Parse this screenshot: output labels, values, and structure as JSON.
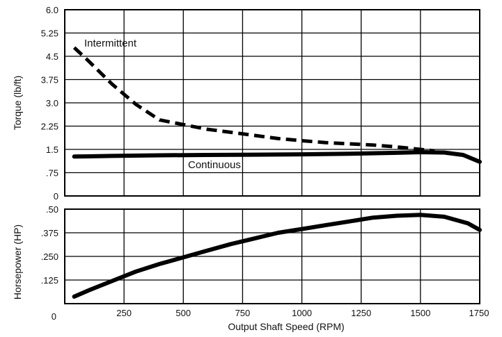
{
  "chart_data": [
    {
      "type": "line",
      "ylabel": "Torque (lb/ft)",
      "ylim": [
        0,
        6.0
      ],
      "grid": true,
      "x_ticks": [
        0,
        250,
        500,
        750,
        1000,
        1250,
        1500,
        1750
      ],
      "y_ticks": [
        0,
        0.75,
        1.5,
        2.25,
        3.0,
        3.75,
        4.5,
        5.25,
        6.0
      ],
      "y_tick_labels": [
        "0",
        ".75",
        "1.5",
        "2.25",
        "3.0",
        "3.75",
        "4.5",
        "5.25",
        "6.0"
      ],
      "annotations": [
        "Intermittent",
        "Continuous"
      ],
      "series": [
        {
          "name": "Intermittent",
          "style": "dashed",
          "x": [
            40,
            100,
            200,
            300,
            400,
            500,
            600,
            700,
            800,
            900,
            1000,
            1100,
            1200,
            1300,
            1400,
            1500,
            1560
          ],
          "y": [
            4.78,
            4.35,
            3.6,
            2.95,
            2.45,
            2.3,
            2.15,
            2.05,
            1.95,
            1.85,
            1.78,
            1.72,
            1.68,
            1.64,
            1.58,
            1.5,
            1.45
          ]
        },
        {
          "name": "Continuous",
          "style": "solid",
          "x": [
            40,
            200,
            400,
            600,
            800,
            1000,
            1200,
            1400,
            1500,
            1600,
            1680,
            1750
          ],
          "y": [
            1.27,
            1.29,
            1.31,
            1.32,
            1.33,
            1.34,
            1.36,
            1.39,
            1.41,
            1.4,
            1.32,
            1.1
          ]
        }
      ]
    },
    {
      "type": "line",
      "xlabel": "Output Shaft Speed (RPM)",
      "ylabel": "Horsepower (HP)",
      "xlim": [
        0,
        1750
      ],
      "ylim": [
        0,
        0.5
      ],
      "grid": true,
      "x_ticks": [
        0,
        250,
        500,
        750,
        1000,
        1250,
        1500,
        1750
      ],
      "x_tick_labels": [
        "0",
        "250",
        "500",
        "750",
        "1000",
        "1250",
        "1500",
        "1750"
      ],
      "y_ticks": [
        0.125,
        0.25,
        0.375,
        0.5
      ],
      "y_tick_labels": [
        ".125",
        ".250",
        ".375",
        ".50"
      ],
      "series": [
        {
          "style": "solid",
          "x": [
            40,
            100,
            200,
            300,
            400,
            500,
            600,
            700,
            800,
            900,
            1000,
            1100,
            1200,
            1300,
            1400,
            1500,
            1600,
            1700,
            1750
          ],
          "y": [
            0.037,
            0.07,
            0.12,
            0.17,
            0.21,
            0.245,
            0.28,
            0.315,
            0.345,
            0.375,
            0.395,
            0.415,
            0.435,
            0.455,
            0.465,
            0.47,
            0.46,
            0.425,
            0.39
          ]
        }
      ]
    }
  ]
}
